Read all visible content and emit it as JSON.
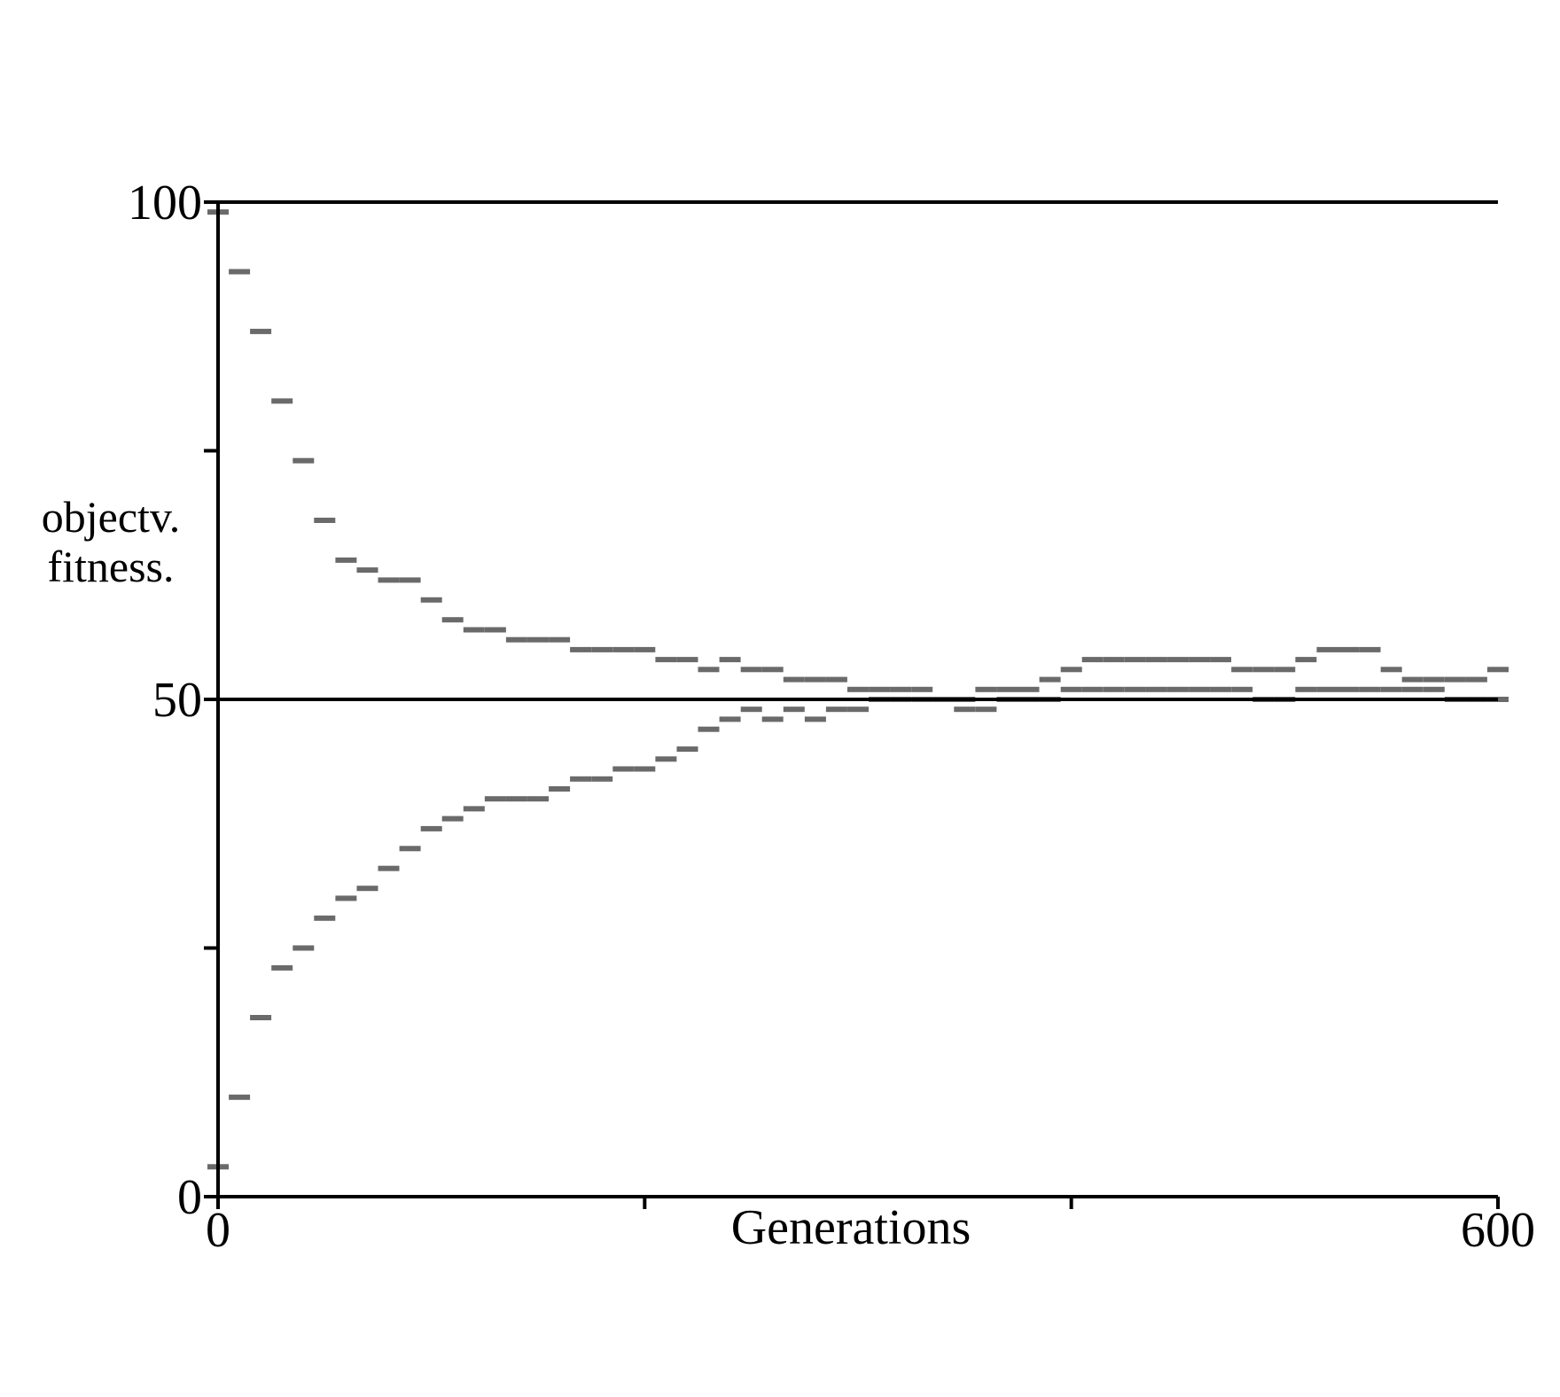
{
  "chart_data": {
    "type": "scatter",
    "title": "",
    "xlabel": "Generations",
    "ylabel_lines": [
      "objectv.",
      "fitness."
    ],
    "xlim": [
      0,
      600
    ],
    "ylim": [
      0,
      100
    ],
    "x_tick_labels": [
      {
        "value": 0,
        "label": "0"
      },
      {
        "value": 600,
        "label": "600"
      }
    ],
    "x_minor_ticks": [
      200,
      400
    ],
    "y_tick_labels": [
      {
        "value": 0,
        "label": "0"
      },
      {
        "value": 50,
        "label": "50"
      },
      {
        "value": 100,
        "label": "100"
      }
    ],
    "y_minor_ticks": [
      25,
      75
    ],
    "reference_lines": [
      50,
      100
    ],
    "mark_color": "#6a6a6a",
    "series": [
      {
        "x": [
          0,
          10,
          20,
          30,
          40,
          50,
          60,
          70,
          80,
          90,
          100,
          110,
          120,
          130,
          140,
          150,
          160,
          170,
          180,
          190,
          200,
          210,
          220,
          230,
          240,
          250,
          260,
          270,
          280,
          290,
          300,
          310,
          320,
          330,
          340,
          350,
          360,
          370,
          380,
          390,
          400,
          410,
          420,
          430,
          440,
          450,
          460,
          470,
          480,
          490,
          500,
          510,
          520,
          530,
          540,
          550,
          560,
          570,
          580,
          590,
          600
        ],
        "y": [
          99,
          93,
          87,
          80,
          74,
          68,
          64,
          63,
          62,
          62,
          60,
          58,
          57,
          57,
          56,
          56,
          56,
          55,
          55,
          55,
          55,
          54,
          54,
          53,
          54,
          53,
          53,
          52,
          52,
          52,
          51,
          51,
          51,
          51,
          50,
          50,
          51,
          51,
          51,
          52,
          53,
          54,
          54,
          54,
          54,
          54,
          54,
          54,
          53,
          53,
          53,
          54,
          55,
          55,
          55,
          53,
          52,
          52,
          52,
          52,
          53
        ]
      },
      {
        "x": [
          0,
          10,
          20,
          30,
          40,
          50,
          60,
          70,
          80,
          90,
          100,
          110,
          120,
          130,
          140,
          150,
          160,
          170,
          180,
          190,
          200,
          210,
          220,
          230,
          240,
          250,
          260,
          270,
          280,
          290,
          300,
          310,
          320,
          330,
          340,
          350,
          360,
          370,
          380,
          390,
          400,
          410,
          420,
          430,
          440,
          450,
          460,
          470,
          480,
          490,
          500,
          510,
          520,
          530,
          540,
          550,
          560,
          570,
          580,
          590,
          600
        ],
        "y": [
          3,
          10,
          18,
          23,
          25,
          28,
          30,
          31,
          33,
          35,
          37,
          38,
          39,
          40,
          40,
          40,
          41,
          42,
          42,
          43,
          43,
          44,
          45,
          47,
          48,
          49,
          48,
          49,
          48,
          49,
          49,
          50,
          50,
          50,
          50,
          49,
          49,
          50,
          50,
          50,
          51,
          51,
          51,
          51,
          51,
          51,
          51,
          51,
          51,
          50,
          50,
          51,
          51,
          51,
          51,
          51,
          51,
          51,
          50,
          50,
          50
        ]
      }
    ]
  }
}
